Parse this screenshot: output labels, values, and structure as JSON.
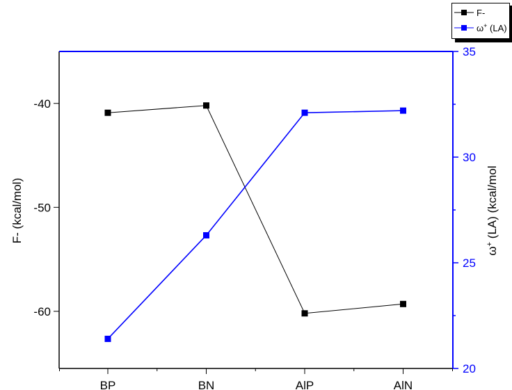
{
  "chart_data": {
    "type": "line",
    "categories": [
      "BP",
      "BN",
      "AlP",
      "AlN"
    ],
    "title": "",
    "legend": {
      "placement": "top-right"
    },
    "grid": false,
    "axes": {
      "left": {
        "label": "F- (kcal/mol)",
        "ylim": [
          -65.5,
          -35
        ],
        "ticks": [
          -40,
          -50,
          -60
        ],
        "tick_labels": [
          "-40",
          "-50",
          "-60"
        ],
        "color": "#000000"
      },
      "right": {
        "label_omega": "ω",
        "label_sup": "+",
        "label_rest": " (LA) (kcal/mol",
        "ylim": [
          20,
          35
        ],
        "ticks": [
          20,
          25,
          30,
          35
        ],
        "tick_labels": [
          "20",
          "25",
          "30",
          "35"
        ],
        "color": "#0000ff"
      }
    },
    "series": [
      {
        "name": "F-",
        "axis": "left",
        "color": "#000000",
        "marker": "square",
        "values": [
          -40.9,
          -40.2,
          -60.2,
          -59.3
        ]
      },
      {
        "name_omega": "ω",
        "name_sup": "+",
        "name_rest": " (LA)",
        "axis": "right",
        "color": "#0000ff",
        "marker": "square",
        "values": [
          21.4,
          26.3,
          32.1,
          32.2
        ]
      }
    ]
  }
}
